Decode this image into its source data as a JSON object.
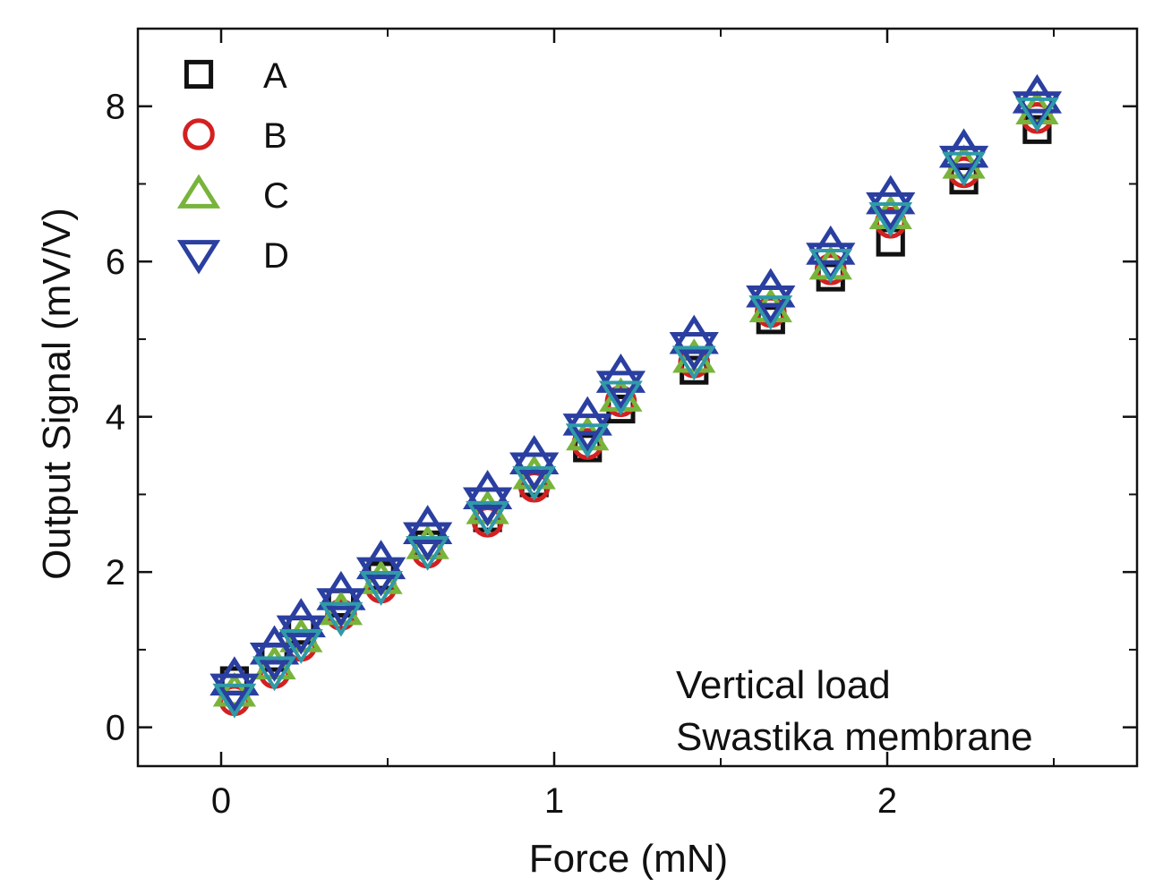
{
  "chart_data": {
    "type": "scatter",
    "title": "",
    "xlabel": "Force (mN)",
    "ylabel": "Output Signal (mV/V)",
    "xlim": [
      -0.25,
      2.75
    ],
    "ylim": [
      -0.5,
      9.0
    ],
    "xticks": [
      0,
      1,
      2
    ],
    "xtick_labels": [
      "0",
      "1",
      "2"
    ],
    "yticks": [
      0,
      2,
      4,
      6,
      8
    ],
    "ytick_labels": [
      "0",
      "2",
      "4",
      "6",
      "8"
    ],
    "grid": false,
    "legend_position": "top-left",
    "annotations": [
      "Vertical load",
      "Swastika membrane"
    ],
    "series": [
      {
        "name": "A",
        "marker": "square",
        "color": "#111111",
        "x": [
          0.04,
          0.16,
          0.24,
          0.36,
          0.48,
          0.62,
          0.8,
          0.94,
          1.1,
          1.2,
          1.42,
          1.65,
          1.83,
          2.01,
          2.23,
          2.45
        ],
        "y": [
          0.6,
          0.9,
          1.25,
          1.6,
          1.95,
          2.35,
          2.7,
          3.15,
          3.6,
          4.1,
          4.6,
          5.25,
          5.8,
          6.25,
          7.05,
          7.7
        ]
      },
      {
        "name": "B",
        "marker": "circle",
        "color": "#d42020",
        "x": [
          0.04,
          0.16,
          0.24,
          0.36,
          0.48,
          0.62,
          0.8,
          0.94,
          1.1,
          1.2,
          1.42,
          1.65,
          1.83,
          2.01,
          2.23,
          2.45
        ],
        "y": [
          0.35,
          0.7,
          1.05,
          1.45,
          1.8,
          2.25,
          2.65,
          3.1,
          3.65,
          4.2,
          4.7,
          5.35,
          5.9,
          6.5,
          7.15,
          7.85
        ]
      },
      {
        "name": "C",
        "marker": "triangle-up",
        "color": "#78b43c",
        "x": [
          0.04,
          0.16,
          0.24,
          0.36,
          0.48,
          0.62,
          0.8,
          0.94,
          1.1,
          1.2,
          1.42,
          1.65,
          1.83,
          2.01,
          2.23,
          2.45
        ],
        "y": [
          0.45,
          0.8,
          1.15,
          1.5,
          1.9,
          2.35,
          2.8,
          3.25,
          3.75,
          4.25,
          4.75,
          5.4,
          5.95,
          6.6,
          7.25,
          7.95
        ]
      },
      {
        "name": "D",
        "marker": "triangle-down",
        "color": "#2a3fa0",
        "x": [
          0.04,
          0.16,
          0.24,
          0.36,
          0.48,
          0.62,
          0.8,
          0.94,
          1.1,
          1.2,
          1.42,
          1.65,
          1.83,
          2.01,
          2.23,
          2.45
        ],
        "y": [
          0.55,
          0.95,
          1.3,
          1.65,
          2.05,
          2.5,
          2.95,
          3.4,
          3.9,
          4.45,
          4.95,
          5.55,
          6.1,
          6.75,
          7.35,
          8.05
        ]
      },
      {
        "name": "",
        "marker": "triangle-down",
        "color": "#2f9aa8",
        "x": [
          0.04,
          0.16,
          0.24,
          0.36,
          0.48,
          0.62,
          0.8,
          0.94,
          1.1,
          1.2,
          1.42,
          1.65,
          1.83,
          2.01,
          2.23,
          2.45
        ],
        "y": [
          0.4,
          0.75,
          1.1,
          1.45,
          1.85,
          2.3,
          2.75,
          3.2,
          3.75,
          4.3,
          4.75,
          5.4,
          6.0,
          6.6,
          7.25,
          7.95
        ]
      }
    ]
  }
}
